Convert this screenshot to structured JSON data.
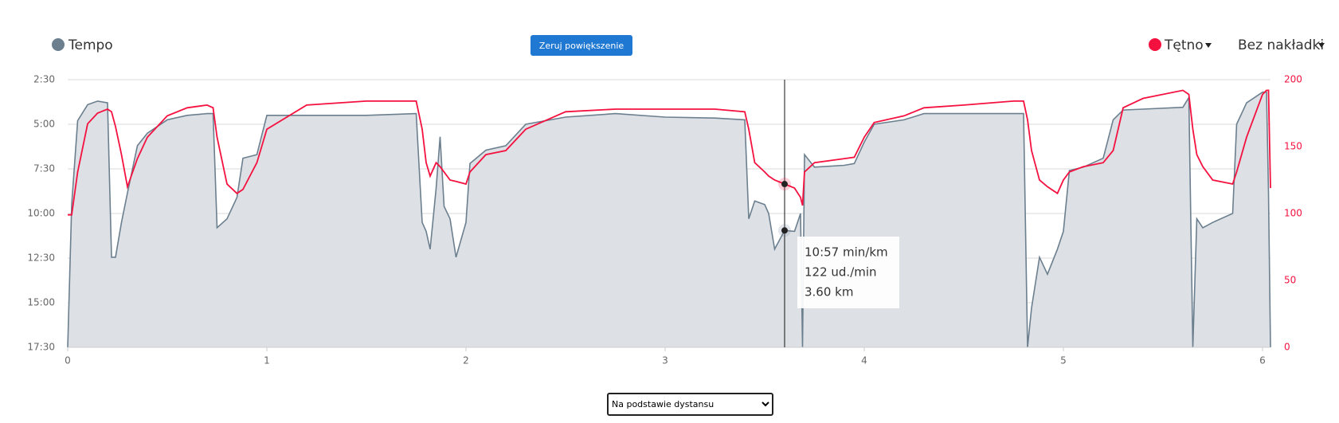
{
  "chart_data": {
    "type": "line",
    "x": [
      0,
      0.02,
      0.05,
      0.1,
      0.15,
      0.2,
      0.22,
      0.24,
      0.27,
      0.3,
      0.35,
      0.4,
      0.5,
      0.6,
      0.7,
      0.73,
      0.75,
      0.8,
      0.85,
      0.88,
      0.95,
      1.0,
      1.2,
      1.5,
      1.75,
      1.78,
      1.8,
      1.82,
      1.85,
      1.87,
      1.89,
      1.92,
      1.95,
      2.0,
      2.02,
      2.1,
      2.2,
      2.3,
      2.5,
      2.75,
      3.0,
      3.25,
      3.4,
      3.42,
      3.45,
      3.5,
      3.52,
      3.55,
      3.6,
      3.65,
      3.68,
      3.69,
      3.7,
      3.75,
      3.9,
      3.95,
      4.0,
      4.05,
      4.2,
      4.3,
      4.5,
      4.75,
      4.8,
      4.82,
      4.84,
      4.88,
      4.92,
      4.97,
      5.0,
      5.03,
      5.1,
      5.2,
      5.25,
      5.3,
      5.4,
      5.6,
      5.63,
      5.65,
      5.67,
      5.7,
      5.75,
      5.85,
      5.87,
      5.92,
      6.0,
      6.02,
      6.03,
      6.04
    ],
    "series": [
      {
        "name": "Tempo",
        "color": "#6c7f8f",
        "fill": "#dde1e5",
        "values": [
          17.5,
          9.5,
          4.8,
          3.9,
          3.7,
          3.8,
          12.45,
          12.45,
          10.5,
          8.85,
          6.2,
          5.5,
          4.75,
          4.5,
          4.4,
          4.4,
          10.8,
          10.3,
          9.1,
          6.9,
          6.7,
          4.5,
          4.5,
          4.5,
          4.4,
          10.5,
          11.0,
          12.0,
          8.6,
          5.7,
          9.6,
          10.3,
          12.45,
          10.5,
          7.2,
          6.45,
          6.2,
          5.0,
          4.6,
          4.4,
          4.6,
          4.65,
          4.75,
          10.3,
          9.3,
          9.5,
          10.0,
          12.0,
          10.95,
          11.0,
          10.0,
          17.5,
          6.7,
          7.4,
          7.3,
          7.2,
          6.0,
          5.0,
          4.75,
          4.4,
          4.4,
          4.4,
          4.4,
          17.5,
          15.3,
          12.45,
          13.4,
          12.0,
          11.0,
          7.6,
          7.4,
          6.9,
          4.75,
          4.2,
          4.15,
          4.05,
          3.5,
          17.5,
          10.3,
          10.8,
          10.5,
          10.0,
          5.0,
          3.8,
          3.2,
          3.2,
          8.85,
          17.5
        ]
      },
      {
        "name": "Tętno",
        "color": "#f5113f",
        "axis": "y2",
        "values": [
          99,
          99,
          131,
          167,
          175,
          178,
          176,
          165,
          144,
          120,
          141,
          157,
          173,
          179,
          181,
          179,
          157,
          122,
          115,
          118,
          138,
          163,
          181,
          184,
          184,
          163,
          138,
          128,
          138,
          135,
          131,
          125,
          124,
          122,
          131,
          144,
          147,
          163,
          176,
          178,
          178,
          178,
          176,
          163,
          138,
          131,
          128,
          125,
          122,
          119,
          112,
          106,
          131,
          138,
          141,
          142,
          157,
          168,
          173,
          179,
          181,
          184,
          184,
          170,
          147,
          125,
          120,
          115,
          125,
          131,
          135,
          138,
          147,
          179,
          186,
          192,
          189,
          163,
          144,
          135,
          125,
          122,
          131,
          157,
          189,
          192,
          192,
          119
        ]
      }
    ],
    "xlim": [
      0,
      6.04
    ],
    "xticks": [
      0,
      1,
      2,
      3,
      4,
      5,
      6
    ],
    "ylim": [
      17.5,
      2.5
    ],
    "yticks": [
      {
        "value": 2.5,
        "label": "2:30"
      },
      {
        "value": 5,
        "label": "5:00"
      },
      {
        "value": 7.5,
        "label": "7:30"
      },
      {
        "value": 10,
        "label": "10:00"
      },
      {
        "value": 12.5,
        "label": "12:30"
      },
      {
        "value": 15,
        "label": "15:00"
      },
      {
        "value": 17.5,
        "label": "17:30"
      }
    ],
    "y2lim": [
      0,
      200
    ],
    "y2ticks": [
      0,
      50,
      100,
      150,
      200
    ],
    "grid": true,
    "crosshair_x": 3.6,
    "tooltip": [
      "10:57 min/km",
      "122 ud./min",
      "3.60 km"
    ],
    "overlay_menu": "Bez nakładki",
    "reset_zoom_button": "Zeruj powiększenie",
    "x_mode_select": "Na podstawie dystansu"
  }
}
